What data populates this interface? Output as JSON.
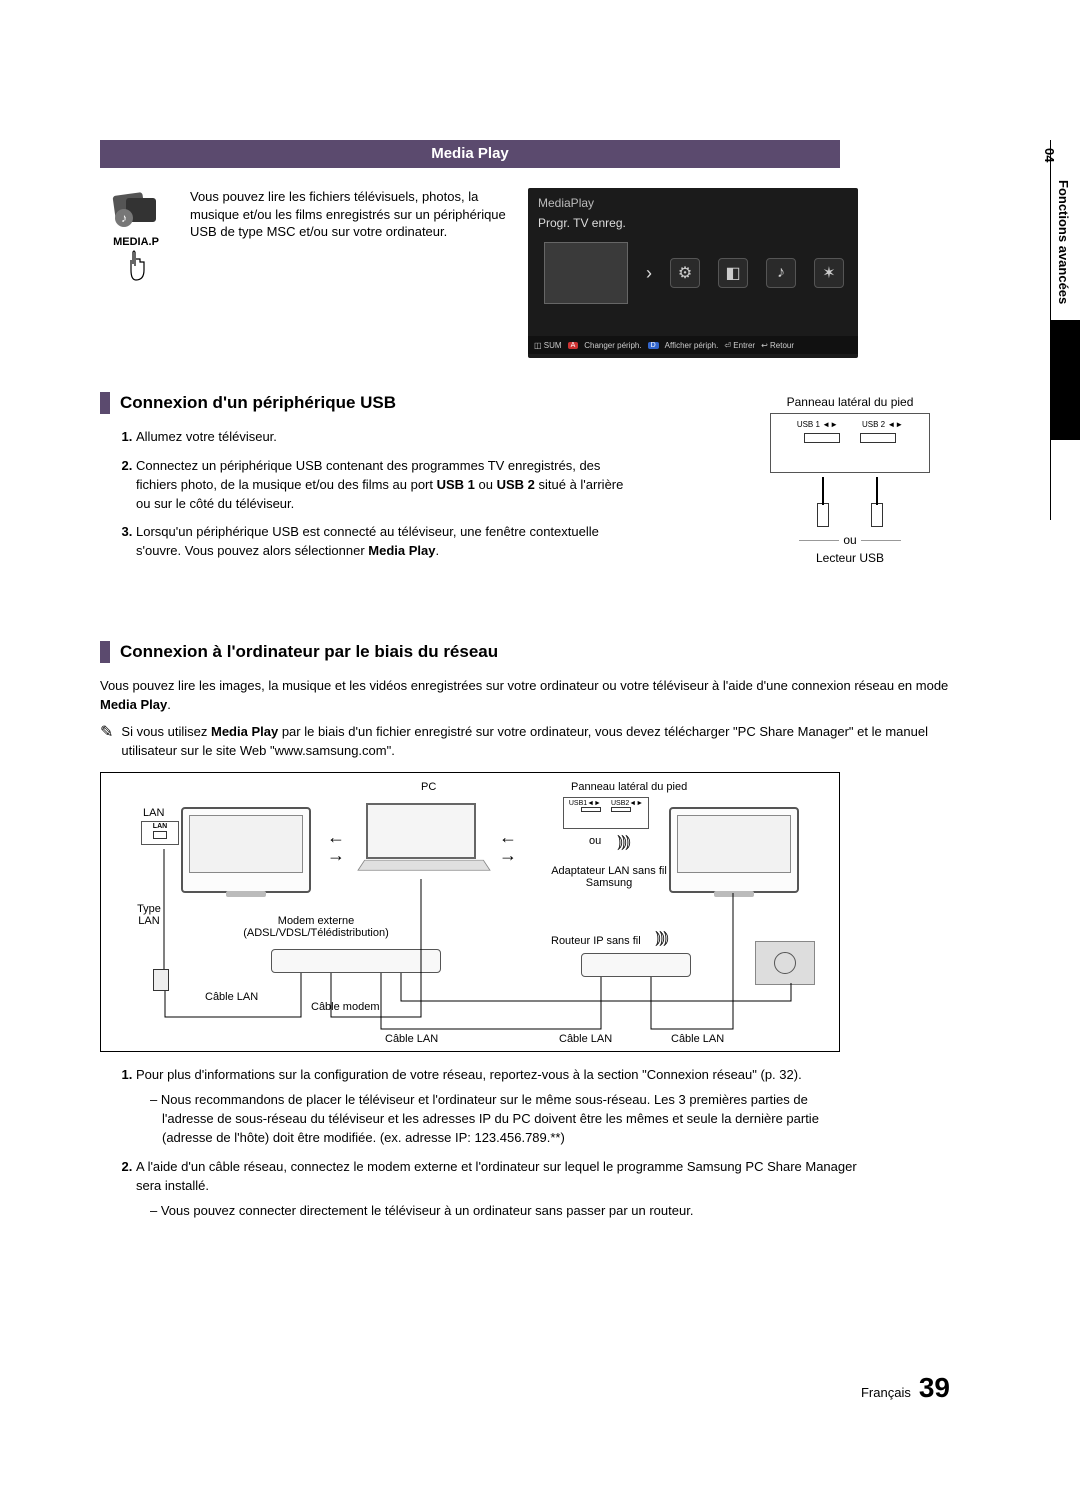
{
  "sideTab": {
    "chapter": "04",
    "title": "Fonctions avancées"
  },
  "banner": "Media Play",
  "mediaIconLabel": "MEDIA.P",
  "mediaDesc": "Vous pouvez lire les fichiers télévisuels, photos, la musique et/ou les films enregistrés sur un périphérique USB de type MSC et/ou sur votre ordinateur.",
  "mpScreenshot": {
    "title": "MediaPlay",
    "sub": "Progr. TV enreg.",
    "footerSumLabel": "SUM",
    "footerA": "Changer périph.",
    "footerD": "Afficher périph.",
    "footerEnter": "Entrer",
    "footerReturn": "Retour"
  },
  "sectionUSB": {
    "title": "Connexion d'un périphérique USB",
    "panelTop": "Panneau latéral du pied",
    "usb1": "USB 1 ◄►",
    "usb2": "USB 2 ◄►",
    "ou": "ou",
    "reader": "Lecteur USB",
    "steps": [
      "Allumez votre téléviseur.",
      "Connectez un périphérique USB contenant des programmes TV enregistrés, des fichiers photo, de la musique et/ou des films au port <b>USB 1</b> ou <b>USB 2</b> situé à l'arrière ou sur le côté du téléviseur.",
      "Lorsqu'un périphérique USB est connecté au téléviseur, une fenêtre contextuelle s'ouvre. Vous pouvez alors sélectionner <b>Media Play</b>."
    ]
  },
  "sectionNet": {
    "title": "Connexion à l'ordinateur par le biais du réseau",
    "intro": "Vous pouvez lire les images, la musique et les vidéos enregistrées sur votre ordinateur ou votre téléviseur à l'aide d'une connexion réseau en mode <b>Media Play</b>.",
    "note": "Si vous utilisez <b>Media Play</b> par le biais d'un fichier enregistré sur votre ordinateur, vous devez télécharger \"PC Share Manager\" et le manuel utilisateur sur le site Web \"www.samsung.com\".",
    "labels": {
      "pc": "PC",
      "panel": "Panneau latéral du pied",
      "lan": "LAN",
      "typeLan": "Type\nLAN",
      "ou": "ou",
      "adapter": "Adaptateur LAN sans fil\nSamsung",
      "modem": "Modem externe\n(ADSL/VDSL/Télédistribution)",
      "router": "Routeur IP sans fil",
      "cableLan": "Câble LAN",
      "cableModem": "Câble modem"
    },
    "steps": [
      {
        "text": "Pour plus d'informations sur la configuration de votre réseau, reportez-vous à la section \"Connexion réseau\" (p. 32).",
        "subs": [
          "Nous recommandons de placer le téléviseur et l'ordinateur sur le même sous-réseau. Les 3 premières parties de l'adresse de sous-réseau du téléviseur et les adresses IP du PC doivent être les mêmes et seule la dernière partie (adresse de l'hôte) doit être modifiée. (ex. adresse IP: 123.456.789.**)"
        ]
      },
      {
        "text": "A l'aide d'un câble réseau, connectez le modem externe et l'ordinateur sur lequel le programme Samsung PC Share Manager sera installé.",
        "subs": [
          "Vous pouvez connecter directement le téléviseur à un ordinateur sans passer par un routeur."
        ]
      }
    ]
  },
  "footer": {
    "lang": "Français",
    "page": "39"
  }
}
